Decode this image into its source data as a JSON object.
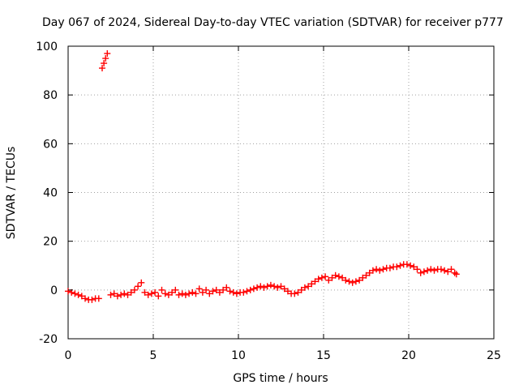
{
  "chart_data": {
    "type": "scatter",
    "title": "Day 067 of 2024, Sidereal Day-to-day VTEC variation (SDTVAR) for receiver p777",
    "xlabel": "GPS time / hours",
    "ylabel": "SDTVAR / TECUs",
    "xlim": [
      0,
      25
    ],
    "ylim": [
      -20,
      100
    ],
    "xticks": [
      "0",
      "5",
      "10",
      "15",
      "20",
      "25"
    ],
    "yticks": [
      "-20",
      "0",
      "20",
      "40",
      "60",
      "80",
      "100"
    ],
    "grid": true,
    "marker": "+",
    "series": [
      {
        "name": "SDTVAR",
        "color": "#ff0000",
        "points": [
          [
            0.0,
            -0.5
          ],
          [
            0.2,
            -1.0
          ],
          [
            0.4,
            -1.5
          ],
          [
            0.6,
            -2.0
          ],
          [
            0.8,
            -2.5
          ],
          [
            1.0,
            -3.5
          ],
          [
            1.2,
            -4.0
          ],
          [
            1.4,
            -4.0
          ],
          [
            1.6,
            -3.5
          ],
          [
            1.8,
            -3.5
          ],
          [
            2.0,
            91.0
          ],
          [
            2.1,
            93.0
          ],
          [
            2.2,
            95.0
          ],
          [
            2.3,
            97.0
          ],
          [
            2.5,
            -2.0
          ],
          [
            2.7,
            -1.5
          ],
          [
            2.9,
            -2.5
          ],
          [
            3.1,
            -2.0
          ],
          [
            3.3,
            -1.5
          ],
          [
            3.5,
            -2.0
          ],
          [
            3.7,
            -1.0
          ],
          [
            3.9,
            0.0
          ],
          [
            4.1,
            1.5
          ],
          [
            4.3,
            3.0
          ],
          [
            4.5,
            -1.0
          ],
          [
            4.7,
            -2.0
          ],
          [
            4.9,
            -1.5
          ],
          [
            5.1,
            -1.0
          ],
          [
            5.3,
            -2.5
          ],
          [
            5.5,
            0.0
          ],
          [
            5.7,
            -1.5
          ],
          [
            5.9,
            -2.0
          ],
          [
            6.1,
            -1.0
          ],
          [
            6.3,
            0.0
          ],
          [
            6.5,
            -2.0
          ],
          [
            6.7,
            -1.5
          ],
          [
            6.9,
            -2.0
          ],
          [
            7.1,
            -1.5
          ],
          [
            7.3,
            -1.0
          ],
          [
            7.5,
            -1.5
          ],
          [
            7.7,
            0.5
          ],
          [
            7.9,
            -1.0
          ],
          [
            8.1,
            0.0
          ],
          [
            8.3,
            -1.5
          ],
          [
            8.5,
            -0.5
          ],
          [
            8.7,
            0.0
          ],
          [
            8.9,
            -1.0
          ],
          [
            9.1,
            0.0
          ],
          [
            9.3,
            1.0
          ],
          [
            9.5,
            -0.5
          ],
          [
            9.7,
            -1.0
          ],
          [
            9.9,
            -1.5
          ],
          [
            10.1,
            -1.0
          ],
          [
            10.3,
            -1.0
          ],
          [
            10.5,
            -0.5
          ],
          [
            10.7,
            0.0
          ],
          [
            10.9,
            0.5
          ],
          [
            11.1,
            1.0
          ],
          [
            11.3,
            1.5
          ],
          [
            11.5,
            1.0
          ],
          [
            11.7,
            1.5
          ],
          [
            11.9,
            2.0
          ],
          [
            12.1,
            1.5
          ],
          [
            12.3,
            1.0
          ],
          [
            12.5,
            1.5
          ],
          [
            12.7,
            0.5
          ],
          [
            12.9,
            -0.5
          ],
          [
            13.1,
            -1.5
          ],
          [
            13.3,
            -1.5
          ],
          [
            13.5,
            -1.0
          ],
          [
            13.7,
            0.0
          ],
          [
            13.9,
            1.0
          ],
          [
            14.1,
            1.5
          ],
          [
            14.3,
            2.5
          ],
          [
            14.5,
            3.5
          ],
          [
            14.7,
            4.5
          ],
          [
            14.9,
            5.0
          ],
          [
            15.1,
            5.5
          ],
          [
            15.3,
            4.0
          ],
          [
            15.5,
            5.0
          ],
          [
            15.7,
            6.0
          ],
          [
            15.9,
            5.5
          ],
          [
            16.1,
            5.0
          ],
          [
            16.3,
            4.0
          ],
          [
            16.5,
            3.5
          ],
          [
            16.7,
            3.0
          ],
          [
            16.9,
            3.5
          ],
          [
            17.1,
            4.0
          ],
          [
            17.3,
            5.0
          ],
          [
            17.5,
            6.0
          ],
          [
            17.7,
            7.0
          ],
          [
            17.9,
            8.0
          ],
          [
            18.1,
            8.5
          ],
          [
            18.3,
            8.0
          ],
          [
            18.5,
            8.5
          ],
          [
            18.7,
            9.0
          ],
          [
            18.9,
            9.0
          ],
          [
            19.1,
            9.5
          ],
          [
            19.3,
            9.5
          ],
          [
            19.5,
            10.0
          ],
          [
            19.7,
            10.5
          ],
          [
            19.9,
            10.5
          ],
          [
            20.1,
            10.0
          ],
          [
            20.3,
            9.5
          ],
          [
            20.5,
            8.5
          ],
          [
            20.7,
            7.0
          ],
          [
            20.9,
            7.5
          ],
          [
            21.1,
            8.0
          ],
          [
            21.3,
            8.5
          ],
          [
            21.5,
            8.0
          ],
          [
            21.7,
            8.5
          ],
          [
            21.9,
            8.5
          ],
          [
            22.1,
            8.0
          ],
          [
            22.3,
            7.5
          ],
          [
            22.5,
            8.5
          ],
          [
            22.7,
            7.0
          ],
          [
            22.8,
            6.5
          ]
        ]
      }
    ]
  }
}
